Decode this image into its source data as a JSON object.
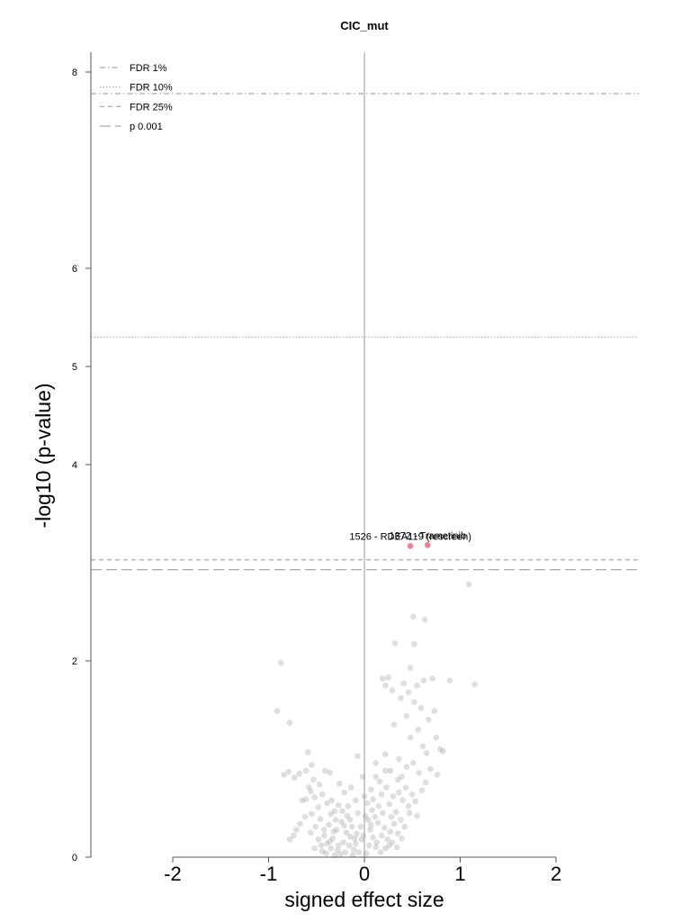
{
  "chart_data": {
    "type": "scatter",
    "title": "CIC_mut",
    "xlabel": "signed effect size",
    "ylabel": "-log10 (p-value)",
    "xlim": [
      -2.85,
      2.85
    ],
    "ylim": [
      0,
      8.3
    ],
    "x_ticks": [
      {
        "value": -2,
        "label": "-2"
      },
      {
        "value": -1,
        "label": "-1"
      },
      {
        "value": 0,
        "label": "0"
      },
      {
        "value": 1,
        "label": "1"
      },
      {
        "value": 2,
        "label": "2"
      }
    ],
    "y_ticks": [
      {
        "value": 0,
        "label": "0"
      },
      {
        "value": 2,
        "label": "2"
      },
      {
        "value": 4,
        "label": "4"
      },
      {
        "value": 5,
        "label": "5"
      },
      {
        "value": 6,
        "label": "6"
      },
      {
        "value": 8,
        "label": "8"
      }
    ],
    "grid": false,
    "legend_position": "top-left",
    "thresholds": [
      {
        "name": "FDR 1%",
        "y": 7.78,
        "dash": "dashdot"
      },
      {
        "name": "FDR 10%",
        "y": 5.3,
        "dash": "dotted"
      },
      {
        "name": "FDR 25%",
        "y": 3.03,
        "dash": "dashed"
      },
      {
        "name": "p 0.001",
        "y": 2.93,
        "dash": "longdash"
      }
    ],
    "highlighted": [
      {
        "x": 0.48,
        "y": 3.17,
        "label": "1526 - RDEA119 (rescreen)"
      },
      {
        "x": 0.66,
        "y": 3.18,
        "label": "1372 - Trametinib"
      }
    ],
    "colors": {
      "point": "#888888",
      "highlight": "#f0808f",
      "threshold": "#aaaaaa",
      "zero_line": "#cccccc",
      "axis": "#555555"
    },
    "points": [
      [
        1.09,
        2.78
      ],
      [
        0.51,
        2.45
      ],
      [
        0.63,
        2.42
      ],
      [
        0.32,
        2.18
      ],
      [
        0.52,
        2.17
      ],
      [
        -0.87,
        1.98
      ],
      [
        0.48,
        1.93
      ],
      [
        0.19,
        1.82
      ],
      [
        0.25,
        1.83
      ],
      [
        0.62,
        1.8
      ],
      [
        0.71,
        1.82
      ],
      [
        0.89,
        1.8
      ],
      [
        1.15,
        1.76
      ],
      [
        0.41,
        1.77
      ],
      [
        0.55,
        1.75
      ],
      [
        -0.91,
        1.49
      ],
      [
        -0.78,
        1.37
      ],
      [
        0.22,
        1.75
      ],
      [
        0.29,
        1.7
      ],
      [
        0.46,
        1.68
      ],
      [
        0.38,
        1.62
      ],
      [
        0.52,
        1.58
      ],
      [
        0.59,
        1.52
      ],
      [
        0.73,
        1.49
      ],
      [
        0.44,
        1.44
      ],
      [
        0.67,
        1.4
      ],
      [
        0.31,
        1.35
      ],
      [
        0.56,
        1.3
      ],
      [
        0.48,
        1.22
      ],
      [
        0.75,
        1.22
      ],
      [
        0.61,
        1.13
      ],
      [
        0.79,
        1.1
      ],
      [
        0.82,
        1.08
      ],
      [
        0.65,
        1.06
      ],
      [
        0.22,
        1.05
      ],
      [
        -0.07,
        1.03
      ],
      [
        0.36,
        1.0
      ],
      [
        0.51,
        0.96
      ],
      [
        0.12,
        0.96
      ],
      [
        0.44,
        0.92
      ],
      [
        0.69,
        0.9
      ],
      [
        0.27,
        0.88
      ],
      [
        0.57,
        0.86
      ],
      [
        0.76,
        0.84
      ],
      [
        0.39,
        0.82
      ],
      [
        -0.59,
        1.07
      ],
      [
        -0.55,
        0.94
      ],
      [
        -0.61,
        0.88
      ],
      [
        -0.68,
        0.85
      ],
      [
        -0.79,
        0.87
      ],
      [
        -0.84,
        0.84
      ],
      [
        -0.73,
        0.81
      ],
      [
        -0.41,
        0.88
      ],
      [
        -0.36,
        0.86
      ],
      [
        -0.53,
        0.79
      ],
      [
        -0.47,
        0.74
      ],
      [
        -0.56,
        0.67
      ],
      [
        -0.61,
        0.59
      ],
      [
        -0.52,
        0.61
      ],
      [
        -0.44,
        0.64
      ],
      [
        -0.39,
        0.55
      ],
      [
        -0.34,
        0.58
      ],
      [
        -0.27,
        0.53
      ],
      [
        -0.31,
        0.47
      ],
      [
        -0.48,
        0.51
      ],
      [
        -0.55,
        0.44
      ],
      [
        -0.62,
        0.41
      ],
      [
        -0.67,
        0.34
      ],
      [
        -0.71,
        0.28
      ],
      [
        -0.74,
        0.22
      ],
      [
        -0.78,
        0.18
      ],
      [
        -0.46,
        0.39
      ],
      [
        -0.51,
        0.31
      ],
      [
        -0.56,
        0.25
      ],
      [
        -0.42,
        0.22
      ],
      [
        -0.37,
        0.33
      ],
      [
        -0.29,
        0.28
      ],
      [
        -0.24,
        0.36
      ],
      [
        -0.18,
        0.42
      ],
      [
        -0.13,
        0.31
      ],
      [
        -0.08,
        0.24
      ],
      [
        -0.03,
        0.18
      ],
      [
        -0.33,
        0.19
      ],
      [
        -0.39,
        0.14
      ],
      [
        -0.45,
        0.12
      ],
      [
        -0.35,
        0.09
      ],
      [
        -0.28,
        0.07
      ],
      [
        -0.22,
        0.15
      ],
      [
        -0.16,
        0.12
      ],
      [
        -0.11,
        0.08
      ],
      [
        -0.06,
        0.05
      ],
      [
        0.02,
        0.04
      ],
      [
        0.05,
        0.12
      ],
      [
        -0.01,
        0.22
      ],
      [
        -0.04,
        0.31
      ],
      [
        -0.15,
        0.21
      ],
      [
        -0.2,
        0.05
      ],
      [
        -0.25,
        0.03
      ],
      [
        -0.31,
        0.02
      ],
      [
        -0.4,
        0.04
      ],
      [
        -0.42,
        0.28
      ],
      [
        -0.3,
        0.38
      ],
      [
        -0.19,
        0.25
      ],
      [
        -0.09,
        0.14
      ],
      [
        -0.12,
        0.02
      ],
      [
        0.0,
        0.62
      ],
      [
        0.03,
        0.55
      ],
      [
        0.08,
        0.48
      ],
      [
        0.11,
        0.41
      ],
      [
        0.14,
        0.35
      ],
      [
        0.06,
        0.28
      ],
      [
        0.09,
        0.2
      ],
      [
        0.13,
        0.15
      ],
      [
        0.18,
        0.22
      ],
      [
        0.21,
        0.3
      ],
      [
        0.24,
        0.18
      ],
      [
        0.27,
        0.26
      ],
      [
        0.31,
        0.34
      ],
      [
        0.35,
        0.24
      ],
      [
        0.28,
        0.41
      ],
      [
        0.33,
        0.46
      ],
      [
        0.38,
        0.38
      ],
      [
        0.42,
        0.31
      ],
      [
        0.46,
        0.52
      ],
      [
        0.4,
        0.58
      ],
      [
        0.18,
        0.64
      ],
      [
        0.23,
        0.71
      ],
      [
        0.16,
        0.77
      ],
      [
        0.07,
        0.69
      ],
      [
        0.12,
        0.82
      ],
      [
        0.09,
        0.59
      ],
      [
        0.15,
        0.52
      ],
      [
        0.19,
        0.45
      ],
      [
        0.26,
        0.54
      ],
      [
        0.3,
        0.62
      ],
      [
        0.36,
        0.66
      ],
      [
        0.43,
        0.71
      ],
      [
        0.5,
        0.64
      ],
      [
        0.53,
        0.57
      ],
      [
        0.47,
        0.45
      ],
      [
        0.55,
        0.42
      ],
      [
        0.6,
        0.68
      ],
      [
        0.64,
        0.76
      ],
      [
        0.35,
        0.79
      ],
      [
        0.22,
        0.88
      ],
      [
        -0.02,
        0.82
      ],
      [
        -0.14,
        0.71
      ],
      [
        -0.21,
        0.66
      ],
      [
        -0.26,
        0.75
      ],
      [
        -0.09,
        0.58
      ],
      [
        -0.17,
        0.52
      ],
      [
        -0.07,
        0.45
      ],
      [
        -0.23,
        0.47
      ],
      [
        0.04,
        0.38
      ],
      [
        0.01,
        0.42
      ],
      [
        -0.35,
        0.44
      ],
      [
        -0.65,
        0.58
      ],
      [
        -0.58,
        0.71
      ],
      [
        0.17,
        0.05
      ],
      [
        0.22,
        0.09
      ],
      [
        0.26,
        0.12
      ],
      [
        0.12,
        0.1
      ],
      [
        0.29,
        0.15
      ],
      [
        0.34,
        0.1
      ],
      [
        0.39,
        0.19
      ],
      [
        -0.48,
        0.18
      ],
      [
        -0.52,
        0.09
      ],
      [
        -0.44,
        0.06
      ],
      [
        -0.36,
        0.16
      ],
      [
        -0.27,
        0.12
      ],
      [
        -0.32,
        0.26
      ],
      [
        -0.21,
        0.32
      ],
      [
        -0.15,
        0.38
      ],
      [
        -0.1,
        0.19
      ],
      [
        0.07,
        0.33
      ]
    ]
  }
}
